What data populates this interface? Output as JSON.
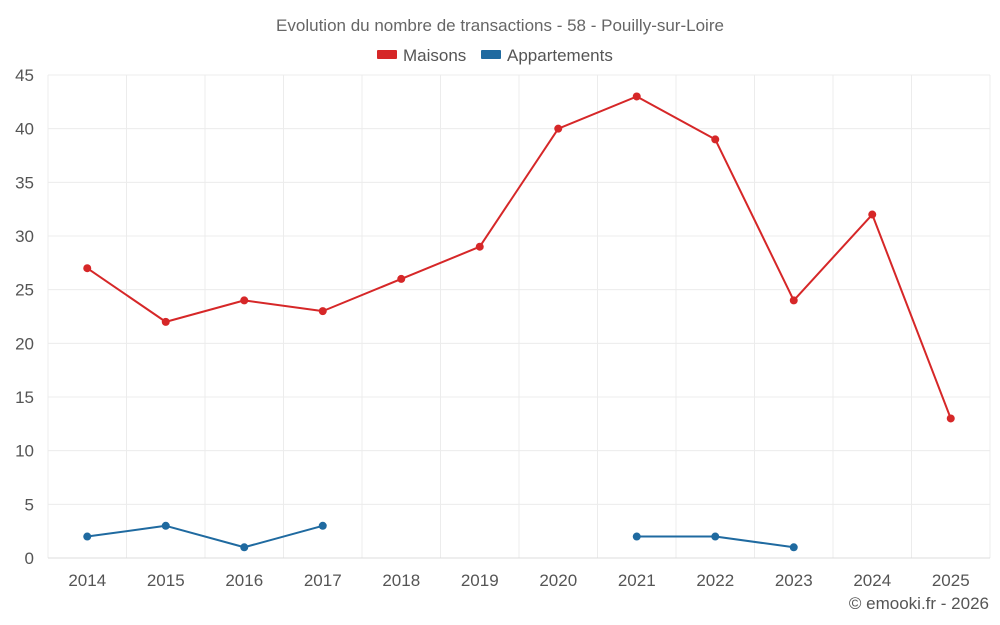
{
  "chart_data": {
    "type": "line",
    "title": "Evolution du nombre de transactions - 58 - Pouilly-sur-Loire",
    "categories": [
      "2014",
      "2015",
      "2016",
      "2017",
      "2018",
      "2019",
      "2020",
      "2021",
      "2022",
      "2023",
      "2024",
      "2025"
    ],
    "series": [
      {
        "name": "Maisons",
        "color": "#d62728",
        "values": [
          27,
          22,
          24,
          23,
          26,
          29,
          40,
          43,
          39,
          24,
          32,
          13
        ]
      },
      {
        "name": "Appartements",
        "color": "#1f6aa0",
        "values": [
          2,
          3,
          1,
          3,
          null,
          null,
          null,
          2,
          2,
          1,
          null,
          null
        ]
      }
    ],
    "ylim": [
      0,
      45
    ],
    "yticks": [
      0,
      5,
      10,
      15,
      20,
      25,
      30,
      35,
      40,
      45
    ],
    "xlabel": "",
    "ylabel": "",
    "grid": true,
    "legend_position": "top-center"
  },
  "credit": "© emooki.fr - 2026"
}
